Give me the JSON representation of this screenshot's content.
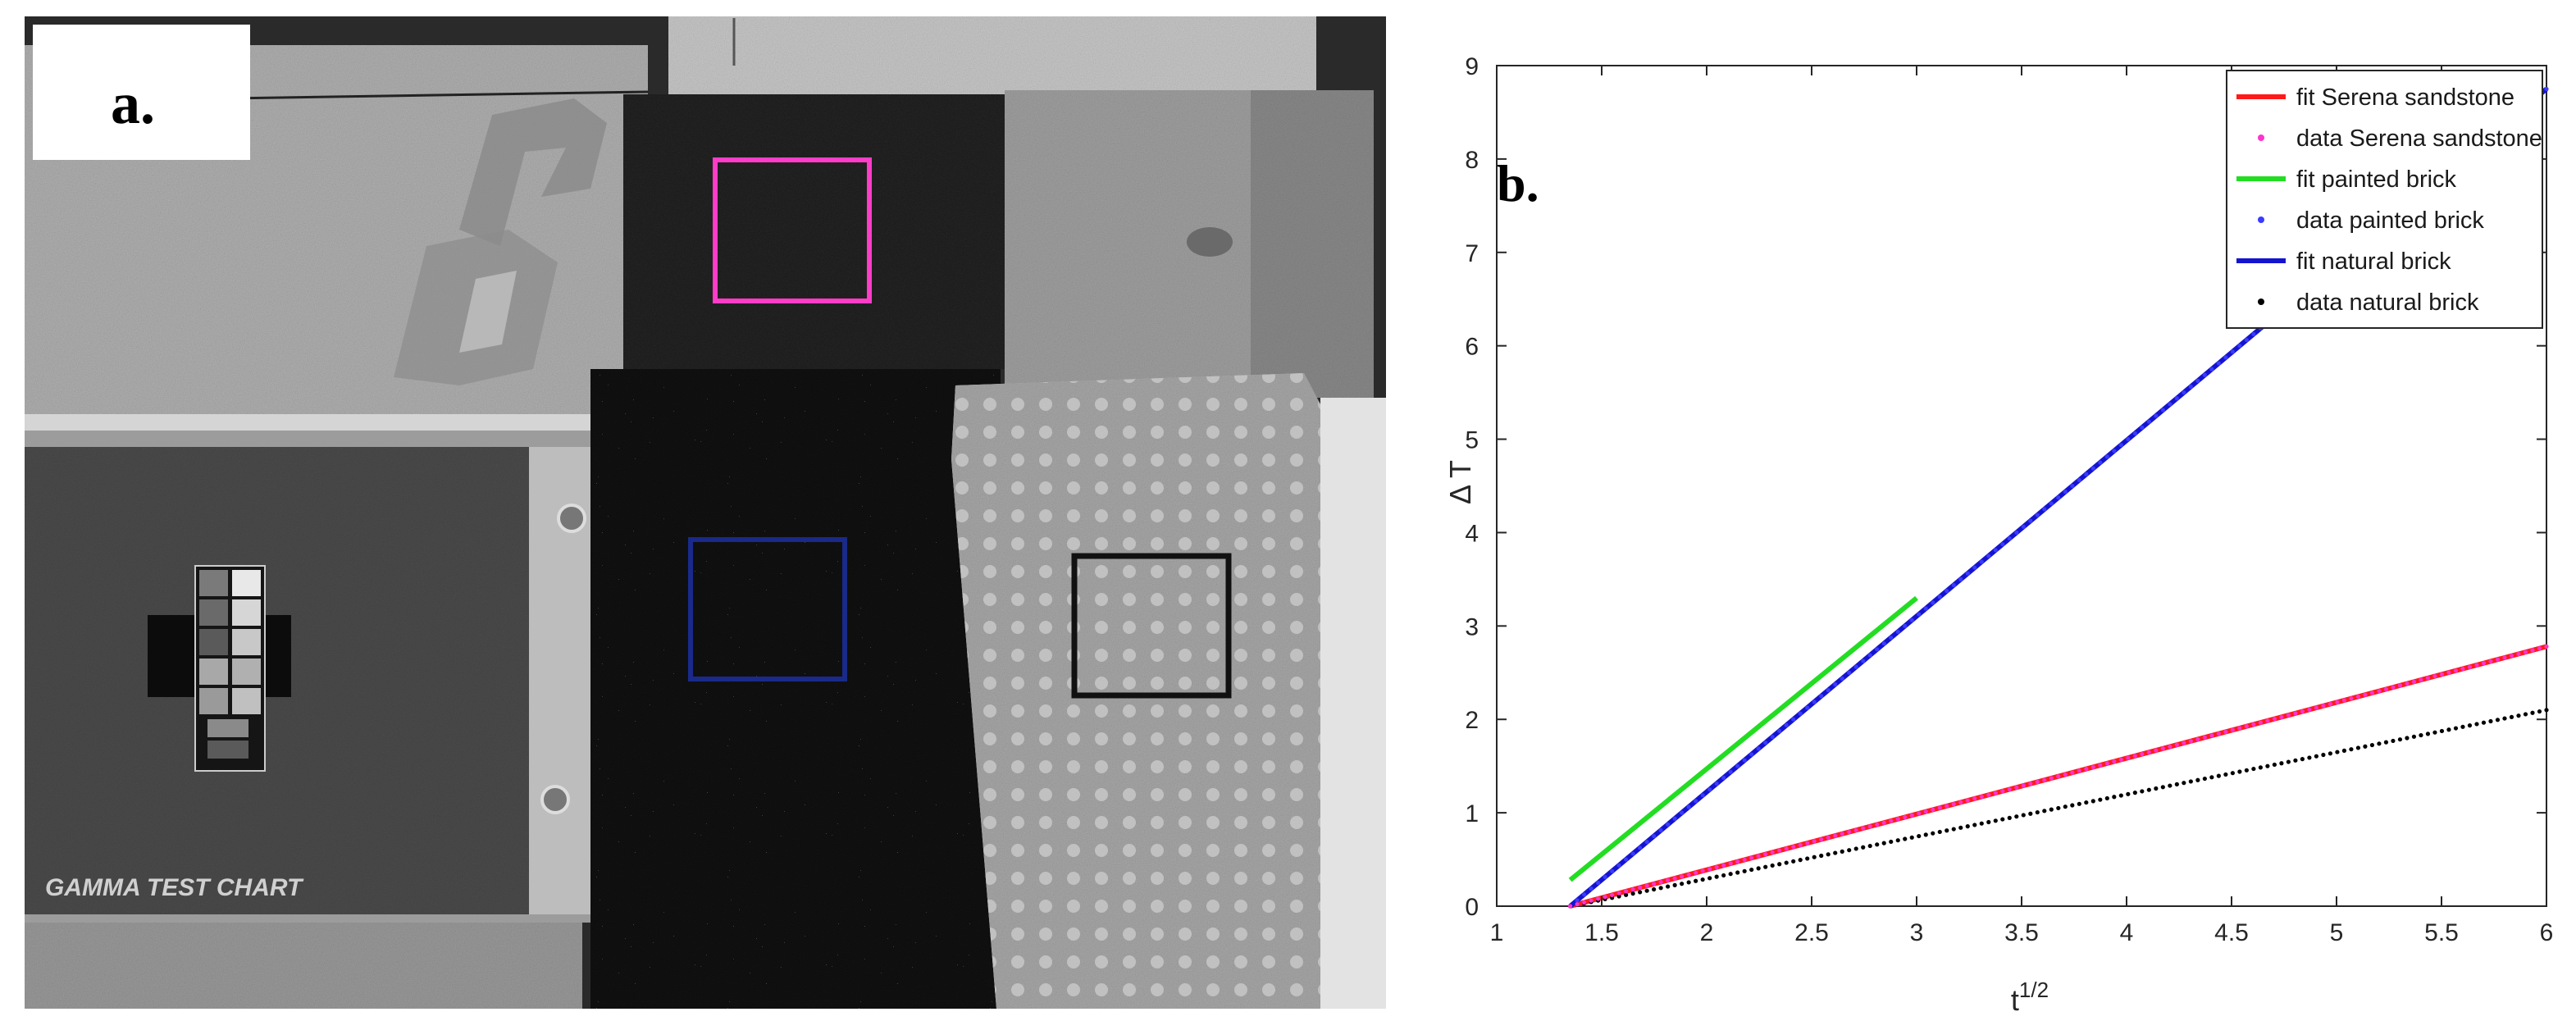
{
  "panel_a": {
    "label": "a.",
    "chart_label": "GAMMA TEST CHART",
    "roi_colors": {
      "magenta": "#ff3cc8",
      "blue": "#1a2a8a",
      "black": "#111111"
    }
  },
  "panel_b": {
    "label": "b."
  },
  "chart_data": {
    "type": "line",
    "xlabel": "t",
    "xlabel_sup": "1/2",
    "ylabel": "Δ T",
    "xlim": [
      1,
      6
    ],
    "ylim": [
      0,
      9
    ],
    "xticks": [
      "1",
      "1.5",
      "2",
      "2.5",
      "3",
      "3.5",
      "4",
      "4.5",
      "5",
      "5.5",
      "6"
    ],
    "yticks": [
      "0",
      "1",
      "2",
      "3",
      "4",
      "5",
      "6",
      "7",
      "8",
      "9"
    ],
    "grid": false,
    "legend_position": "top-right",
    "legend": [
      {
        "label": "fit Serena sandstone",
        "style": "line",
        "color": "#ff1a1a"
      },
      {
        "label": "data Serena sandstone",
        "style": "dots",
        "color": "#ff33cc"
      },
      {
        "label": "fit painted brick",
        "style": "line",
        "color": "#22dd22"
      },
      {
        "label": "data painted brick",
        "style": "dots",
        "color": "#3a3aff"
      },
      {
        "label": "fit natural brick",
        "style": "line",
        "color": "#1414d0"
      },
      {
        "label": "data natural brick",
        "style": "dots",
        "color": "#000000"
      }
    ],
    "series": [
      {
        "name": "fit Serena sandstone",
        "style": "line",
        "color": "#ff1a1a",
        "x": [
          1.35,
          6.0
        ],
        "y": [
          0.0,
          2.78
        ]
      },
      {
        "name": "data Serena sandstone",
        "style": "dots",
        "color": "#ff33cc",
        "x": [
          1.35,
          6.0
        ],
        "y": [
          0.0,
          2.78
        ]
      },
      {
        "name": "fit painted brick",
        "style": "line",
        "color": "#22dd22",
        "x": [
          1.35,
          3.0
        ],
        "y": [
          0.28,
          3.3
        ]
      },
      {
        "name": "data painted brick",
        "style": "dots",
        "color": "#3a3aff",
        "x": [
          1.35,
          6.0
        ],
        "y": [
          0.0,
          8.75
        ]
      },
      {
        "name": "fit natural brick",
        "style": "line",
        "color": "#1414d0",
        "x": [
          1.35,
          6.0
        ],
        "y": [
          0.0,
          8.75
        ]
      },
      {
        "name": "data natural brick",
        "style": "dots",
        "color": "#000000",
        "x": [
          1.35,
          6.0
        ],
        "y": [
          0.0,
          2.1
        ]
      }
    ]
  }
}
